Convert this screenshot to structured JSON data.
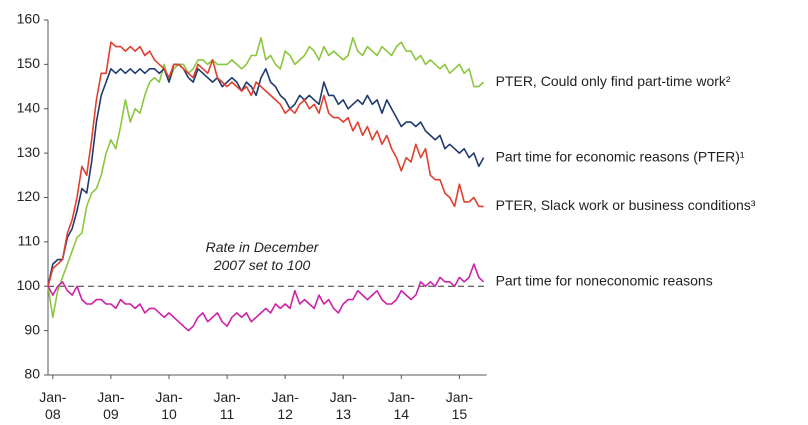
{
  "chart_data": {
    "type": "line",
    "annotation": "Rate in December\n2007 set to 100",
    "hline": 100,
    "categories": [
      null,
      "Jan-\n08",
      null,
      null,
      null,
      null,
      null,
      null,
      null,
      null,
      null,
      null,
      null,
      "Jan-\n09",
      null,
      null,
      null,
      null,
      null,
      null,
      null,
      null,
      null,
      null,
      null,
      "Jan-\n10",
      null,
      null,
      null,
      null,
      null,
      null,
      null,
      null,
      null,
      null,
      null,
      "Jan-\n11",
      null,
      null,
      null,
      null,
      null,
      null,
      null,
      null,
      null,
      null,
      null,
      "Jan-\n12",
      null,
      null,
      null,
      null,
      null,
      null,
      null,
      null,
      null,
      null,
      null,
      "Jan-\n13",
      null,
      null,
      null,
      null,
      null,
      null,
      null,
      null,
      null,
      null,
      null,
      "Jan-\n14",
      null,
      null,
      null,
      null,
      null,
      null,
      null,
      null,
      null,
      null,
      null,
      "Jan-\n15",
      null,
      null,
      null,
      null,
      null
    ],
    "ylim": [
      80,
      160
    ],
    "yticks": [
      80,
      90,
      100,
      110,
      120,
      130,
      140,
      150,
      160
    ],
    "grid": false,
    "series": [
      {
        "name": "PTER, Could only find part-time work²",
        "color": "#8cc63e",
        "values": [
          100,
          93,
          99,
          102,
          105,
          108,
          111,
          112,
          118,
          121,
          122,
          125,
          130,
          133,
          131,
          136,
          142,
          137,
          140,
          139,
          143,
          146,
          147,
          146,
          150,
          146,
          149,
          150,
          150,
          148,
          149,
          151,
          151,
          150,
          151,
          150,
          150,
          150,
          151,
          150,
          149,
          150,
          152,
          152,
          156,
          151,
          152,
          150,
          149,
          153,
          152,
          150,
          151,
          152,
          154,
          153,
          151,
          154,
          152,
          153,
          152,
          151,
          152,
          156,
          153,
          152,
          154,
          153,
          152,
          154,
          153,
          152,
          154,
          155,
          153,
          153,
          151,
          152,
          150,
          151,
          150,
          149,
          150,
          148,
          149,
          150,
          148,
          149,
          145,
          145,
          146
        ]
      },
      {
        "name": "Part time for economic reasons (PTER)¹",
        "color": "#1f3a6e",
        "values": [
          100,
          105,
          106,
          106,
          111,
          113,
          117,
          122,
          121,
          128,
          137,
          143,
          146,
          149,
          148,
          149,
          148,
          149,
          148,
          149,
          148,
          149,
          149,
          148,
          149,
          146,
          150,
          150,
          149,
          147,
          146,
          149,
          148,
          147,
          146,
          147,
          145,
          146,
          147,
          146,
          144,
          146,
          145,
          143,
          147,
          149,
          146,
          145,
          143,
          142,
          140,
          141,
          143,
          142,
          143,
          142,
          141,
          146,
          143,
          143,
          141,
          142,
          140,
          141,
          142,
          141,
          143,
          141,
          142,
          139,
          142,
          140,
          138,
          136,
          137,
          137,
          136,
          137,
          135,
          134,
          133,
          134,
          131,
          132,
          131,
          130,
          131,
          129,
          130,
          127,
          129
        ]
      },
      {
        "name": "PTER, Slack work or business conditions³",
        "color": "#e0402f",
        "values": [
          100,
          104,
          105,
          106,
          112,
          115,
          120,
          127,
          125,
          133,
          142,
          148,
          148,
          155,
          154,
          154,
          153,
          154,
          153,
          154,
          152,
          153,
          151,
          150,
          149,
          147,
          150,
          150,
          149,
          148,
          147,
          150,
          149,
          148,
          151,
          147,
          146,
          145,
          146,
          145,
          144,
          145,
          143,
          146,
          145,
          144,
          143,
          142,
          141,
          139,
          140,
          139,
          141,
          142,
          140,
          141,
          139,
          143,
          139,
          138,
          138,
          137,
          138,
          135,
          137,
          134,
          136,
          133,
          135,
          132,
          134,
          131,
          129,
          126,
          129,
          128,
          132,
          129,
          131,
          125,
          124,
          124,
          121,
          120,
          118,
          123,
          119,
          119,
          120,
          118,
          118
        ]
      },
      {
        "name": "Part time for noneconomic reasons",
        "color": "#cc22aa",
        "values": [
          100,
          98,
          100,
          101,
          99,
          98,
          100,
          97,
          96,
          96,
          97,
          97,
          96,
          96,
          95,
          97,
          96,
          96,
          95,
          96,
          94,
          95,
          95,
          94,
          93,
          94,
          93,
          92,
          91,
          90,
          91,
          93,
          94,
          92,
          93,
          94,
          92,
          91,
          93,
          94,
          93,
          94,
          92,
          93,
          94,
          95,
          94,
          96,
          95,
          96,
          95,
          99,
          96,
          97,
          96,
          95,
          98,
          96,
          97,
          95,
          94,
          96,
          97,
          97,
          99,
          98,
          97,
          98,
          99,
          97,
          96,
          96,
          97,
          99,
          98,
          97,
          98,
          101,
          100,
          101,
          100,
          102,
          101,
          101,
          100,
          102,
          101,
          102,
          105,
          102,
          101
        ]
      }
    ]
  }
}
